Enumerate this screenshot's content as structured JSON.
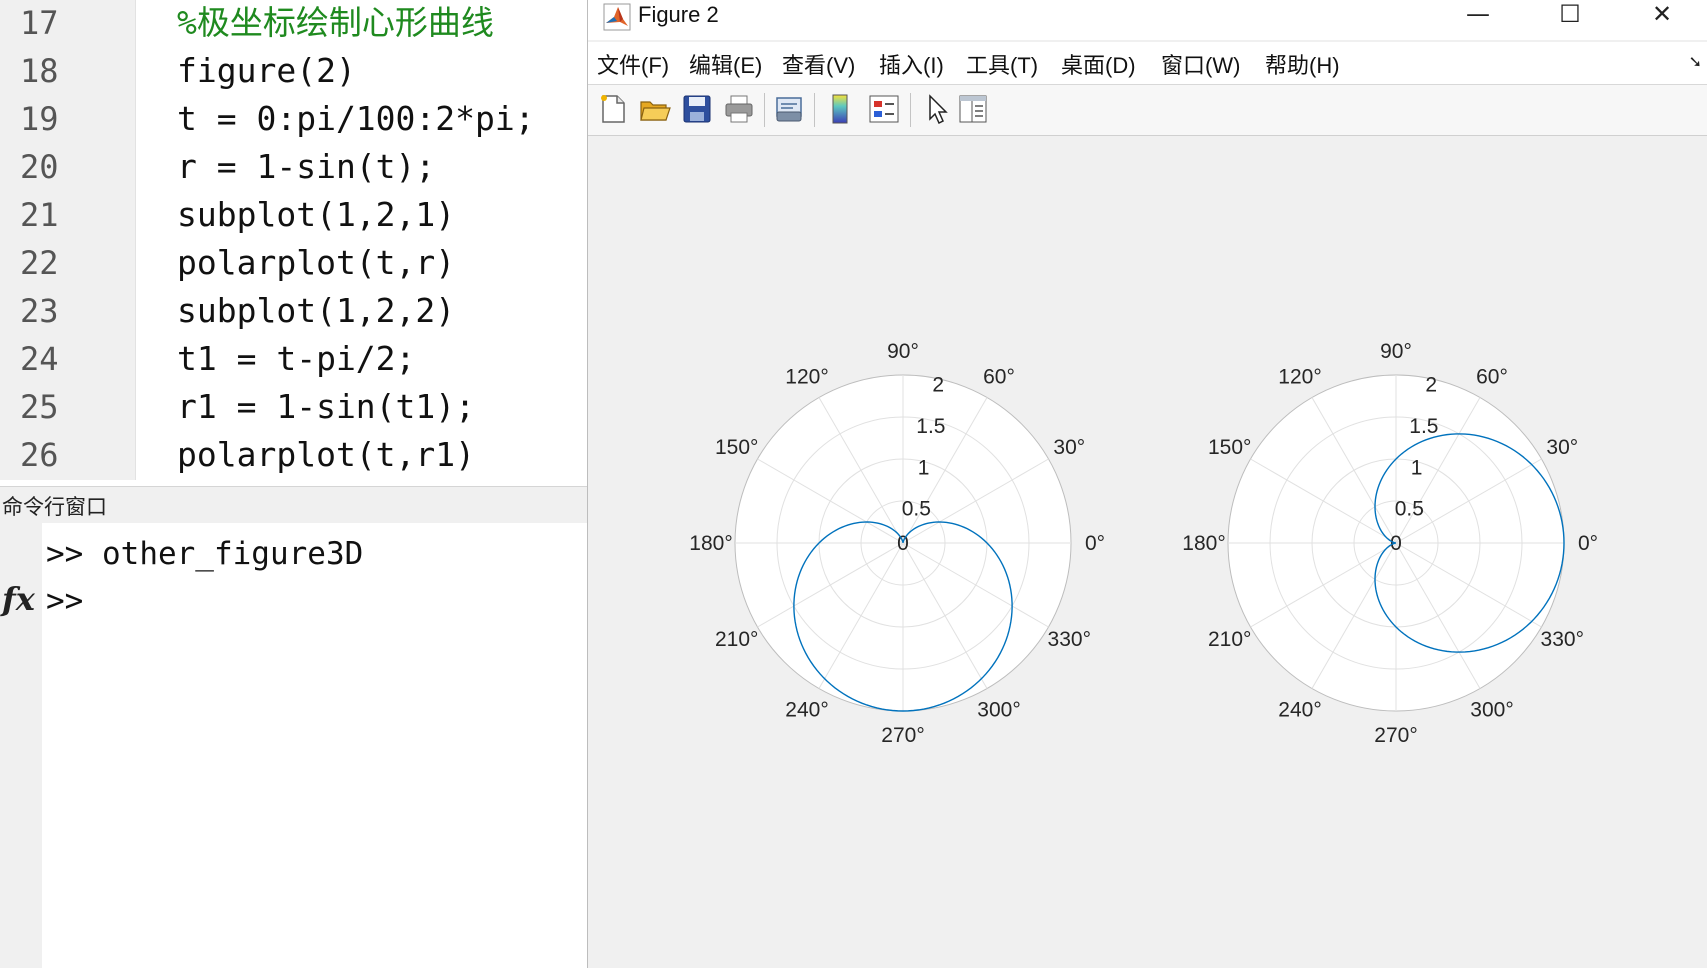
{
  "editor": {
    "line_numbers": [
      "17",
      "18",
      "19",
      "20",
      "21",
      "22",
      "23",
      "24",
      "25",
      "26"
    ],
    "lines": [
      "%极坐标绘制心形曲线",
      "figure(2)",
      "t = 0:pi/100:2*pi;",
      "r = 1-sin(t);",
      "subplot(1,2,1)",
      "polarplot(t,r)",
      "subplot(1,2,2)",
      "t1 = t-pi/2;",
      "r1 = 1-sin(t1);",
      "polarplot(t,r1)"
    ],
    "colors": {
      "comment": "#1f8a1f",
      "code": "#111111"
    }
  },
  "command_window": {
    "title": "命令行窗口",
    "lines": [
      ">> other_figure3D",
      ">>"
    ],
    "fx_label": "fx"
  },
  "figure_window": {
    "title": "Figure 2",
    "controls": {
      "minimize": "—",
      "maximize": "☐",
      "close": "✕"
    },
    "menu": [
      "文件(F)",
      "编辑(E)",
      "查看(V)",
      "插入(I)",
      "工具(T)",
      "桌面(D)",
      "窗口(W)",
      "帮助(H)"
    ],
    "toolbar_icons": [
      "new-figure-icon",
      "open-file-icon",
      "save-icon",
      "print-icon",
      "link-plot-icon",
      "colorbar-icon",
      "legend-icon",
      "pointer-icon",
      "property-inspector-icon"
    ]
  },
  "chart_data": [
    {
      "type": "polar",
      "series": [
        {
          "equation": "r = 1-sin(t)",
          "theta_offset_deg": 0
        }
      ],
      "theta_ticks": [
        "0°",
        "30°",
        "60°",
        "90°",
        "120°",
        "150°",
        "180°",
        "210°",
        "240°",
        "270°",
        "300°",
        "330°"
      ],
      "r_ticks": [
        "0",
        "0.5",
        "1",
        "1.5",
        "2"
      ],
      "rlim": [
        0,
        2
      ],
      "grid": true,
      "line_color": "#0072bd"
    },
    {
      "type": "polar",
      "series": [
        {
          "equation": "r1 = 1-sin(t-pi/2)",
          "theta_offset_deg": -90
        }
      ],
      "theta_ticks": [
        "0°",
        "30°",
        "60°",
        "90°",
        "120°",
        "150°",
        "180°",
        "210°",
        "240°",
        "270°",
        "300°",
        "330°"
      ],
      "r_ticks": [
        "0",
        "0.5",
        "1",
        "1.5",
        "2"
      ],
      "rlim": [
        0,
        2
      ],
      "grid": true,
      "line_color": "#0072bd"
    }
  ]
}
